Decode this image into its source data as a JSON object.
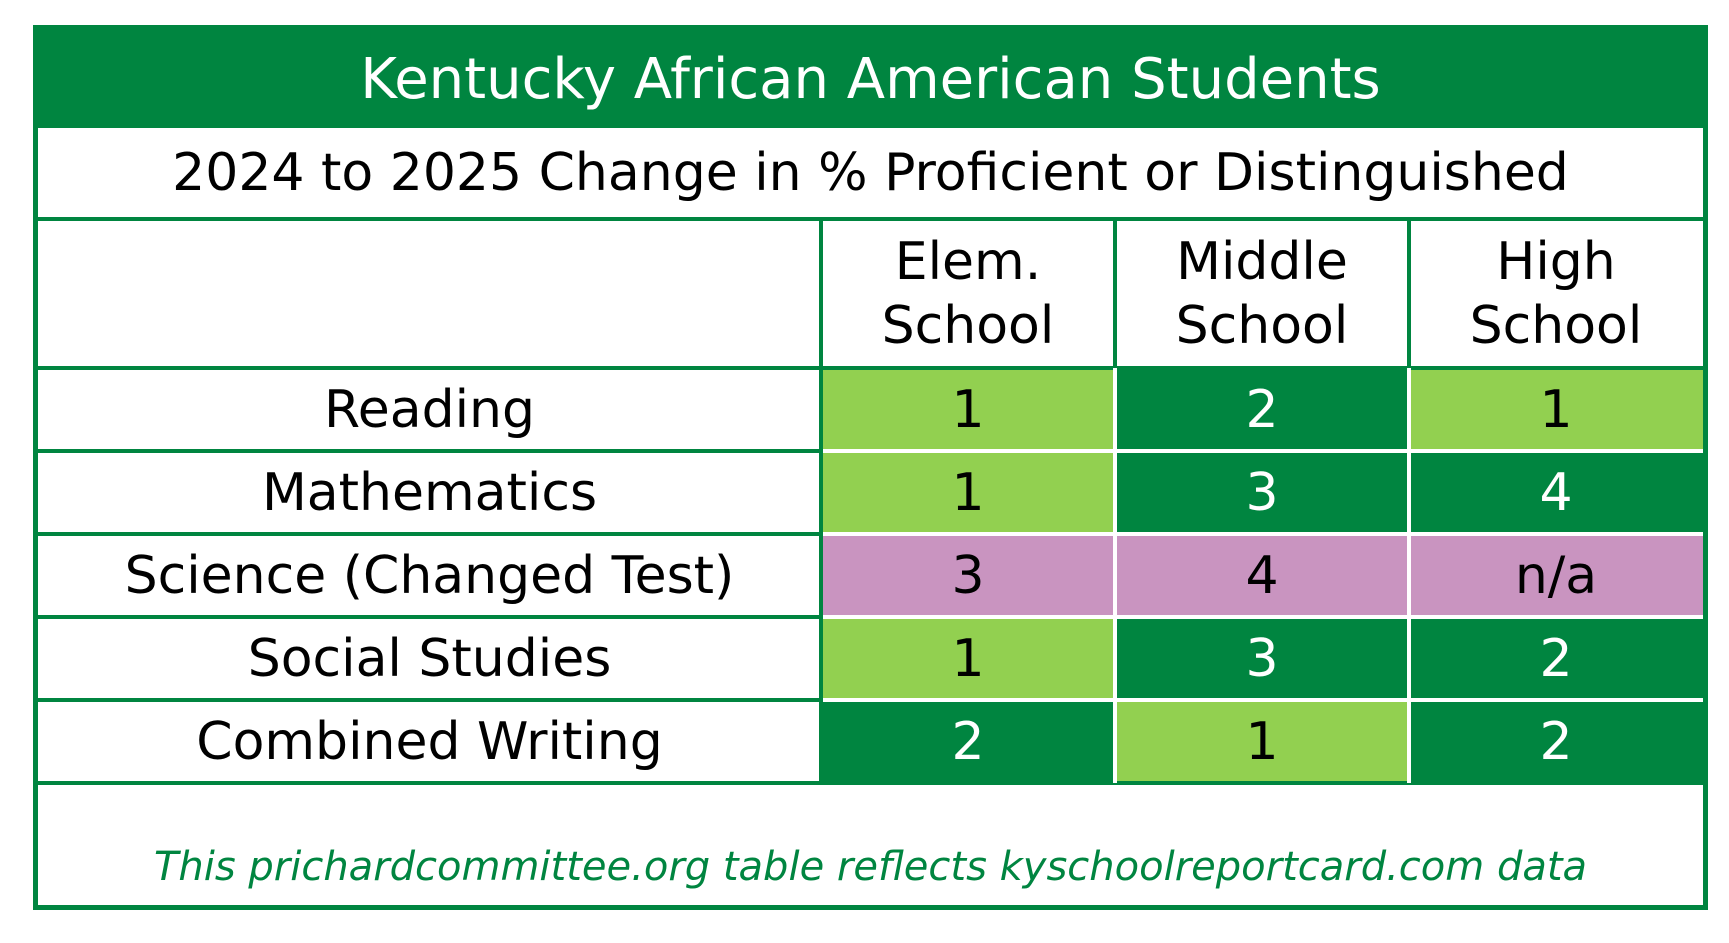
{
  "colors": {
    "dark_green": "#008540",
    "light_green": "#92D050",
    "pink": "#C994C0",
    "white": "#FFFFFF",
    "text_dark": "#000000",
    "text_light": "#FFFFFF",
    "footer_text": "#008540"
  },
  "chart_data": {
    "type": "table",
    "title": "Kentucky African American Students",
    "subtitle": "2024 to 2025 Change in % Proficient or Distinguished",
    "columns": [
      "Elem.\nSchool",
      "Middle\nSchool",
      "High\nSchool"
    ],
    "rows": [
      {
        "label": "Reading",
        "cells": [
          {
            "value": "1",
            "fill": "light_green"
          },
          {
            "value": "2",
            "fill": "dark_green"
          },
          {
            "value": "1",
            "fill": "light_green"
          }
        ]
      },
      {
        "label": "Mathematics",
        "cells": [
          {
            "value": "1",
            "fill": "light_green"
          },
          {
            "value": "3",
            "fill": "dark_green"
          },
          {
            "value": "4",
            "fill": "dark_green"
          }
        ]
      },
      {
        "label": "Science (Changed Test)",
        "cells": [
          {
            "value": "3",
            "fill": "pink"
          },
          {
            "value": "4",
            "fill": "pink"
          },
          {
            "value": "n/a",
            "fill": "pink"
          }
        ]
      },
      {
        "label": "Social Studies",
        "cells": [
          {
            "value": "1",
            "fill": "light_green"
          },
          {
            "value": "3",
            "fill": "dark_green"
          },
          {
            "value": "2",
            "fill": "dark_green"
          }
        ]
      },
      {
        "label": "Combined Writing",
        "cells": [
          {
            "value": "2",
            "fill": "dark_green"
          },
          {
            "value": "1",
            "fill": "light_green"
          },
          {
            "value": "2",
            "fill": "dark_green"
          }
        ]
      }
    ],
    "footer": "This prichardcommittee.org table reflects kyschoolreportcard.com data"
  }
}
